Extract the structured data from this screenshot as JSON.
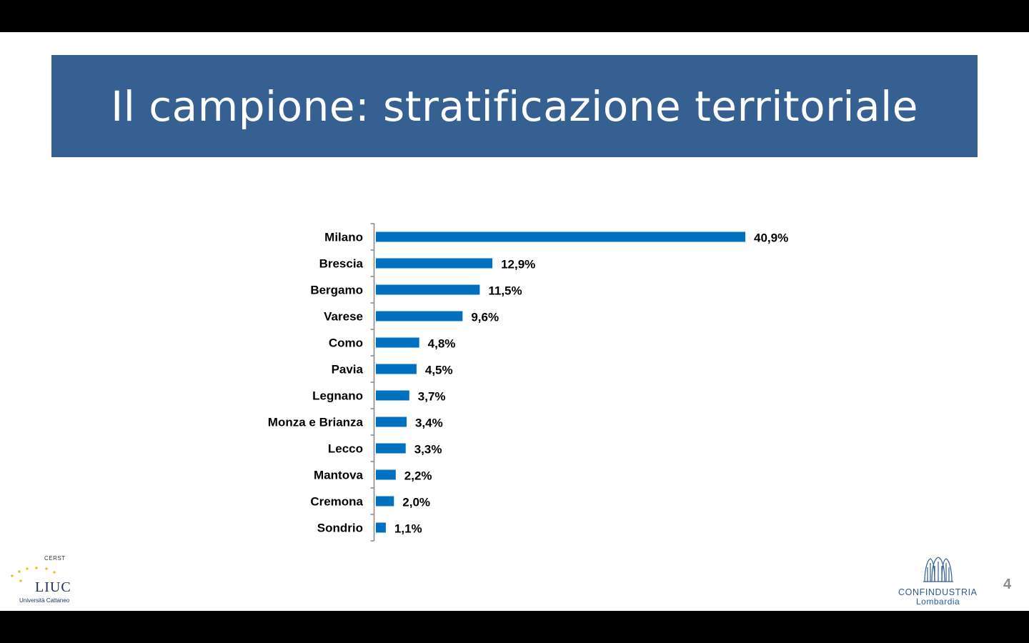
{
  "slide": {
    "title": "Il campione: stratificazione territoriale",
    "page_number": "4"
  },
  "logos": {
    "left": {
      "top_text": "CERST",
      "name": "LIUC",
      "subtitle": "Università Cattaneo"
    },
    "right": {
      "name": "CONFINDUSTRIA",
      "subtitle": "Lombardia"
    }
  },
  "colors": {
    "title_bar": "#376092",
    "bar": "#0070c0",
    "axis": "#868686",
    "label": "#000000"
  },
  "chart_data": {
    "type": "bar",
    "orientation": "horizontal",
    "categories": [
      "Milano",
      "Brescia",
      "Bergamo",
      "Varese",
      "Como",
      "Pavia",
      "Legnano",
      "Monza e Brianza",
      "Lecco",
      "Mantova",
      "Cremona",
      "Sondrio"
    ],
    "values": [
      40.9,
      12.9,
      11.5,
      9.6,
      4.8,
      4.5,
      3.7,
      3.4,
      3.3,
      2.2,
      2.0,
      1.1
    ],
    "data_labels": [
      "40,9%",
      "12,9%",
      "11,5%",
      "9,6%",
      "4,8%",
      "4,5%",
      "3,7%",
      "3,4%",
      "3,3%",
      "2,2%",
      "2,0%",
      "1,1%"
    ],
    "unit": "%",
    "xlim": [
      0,
      41
    ],
    "grid": false,
    "legend": "none"
  }
}
